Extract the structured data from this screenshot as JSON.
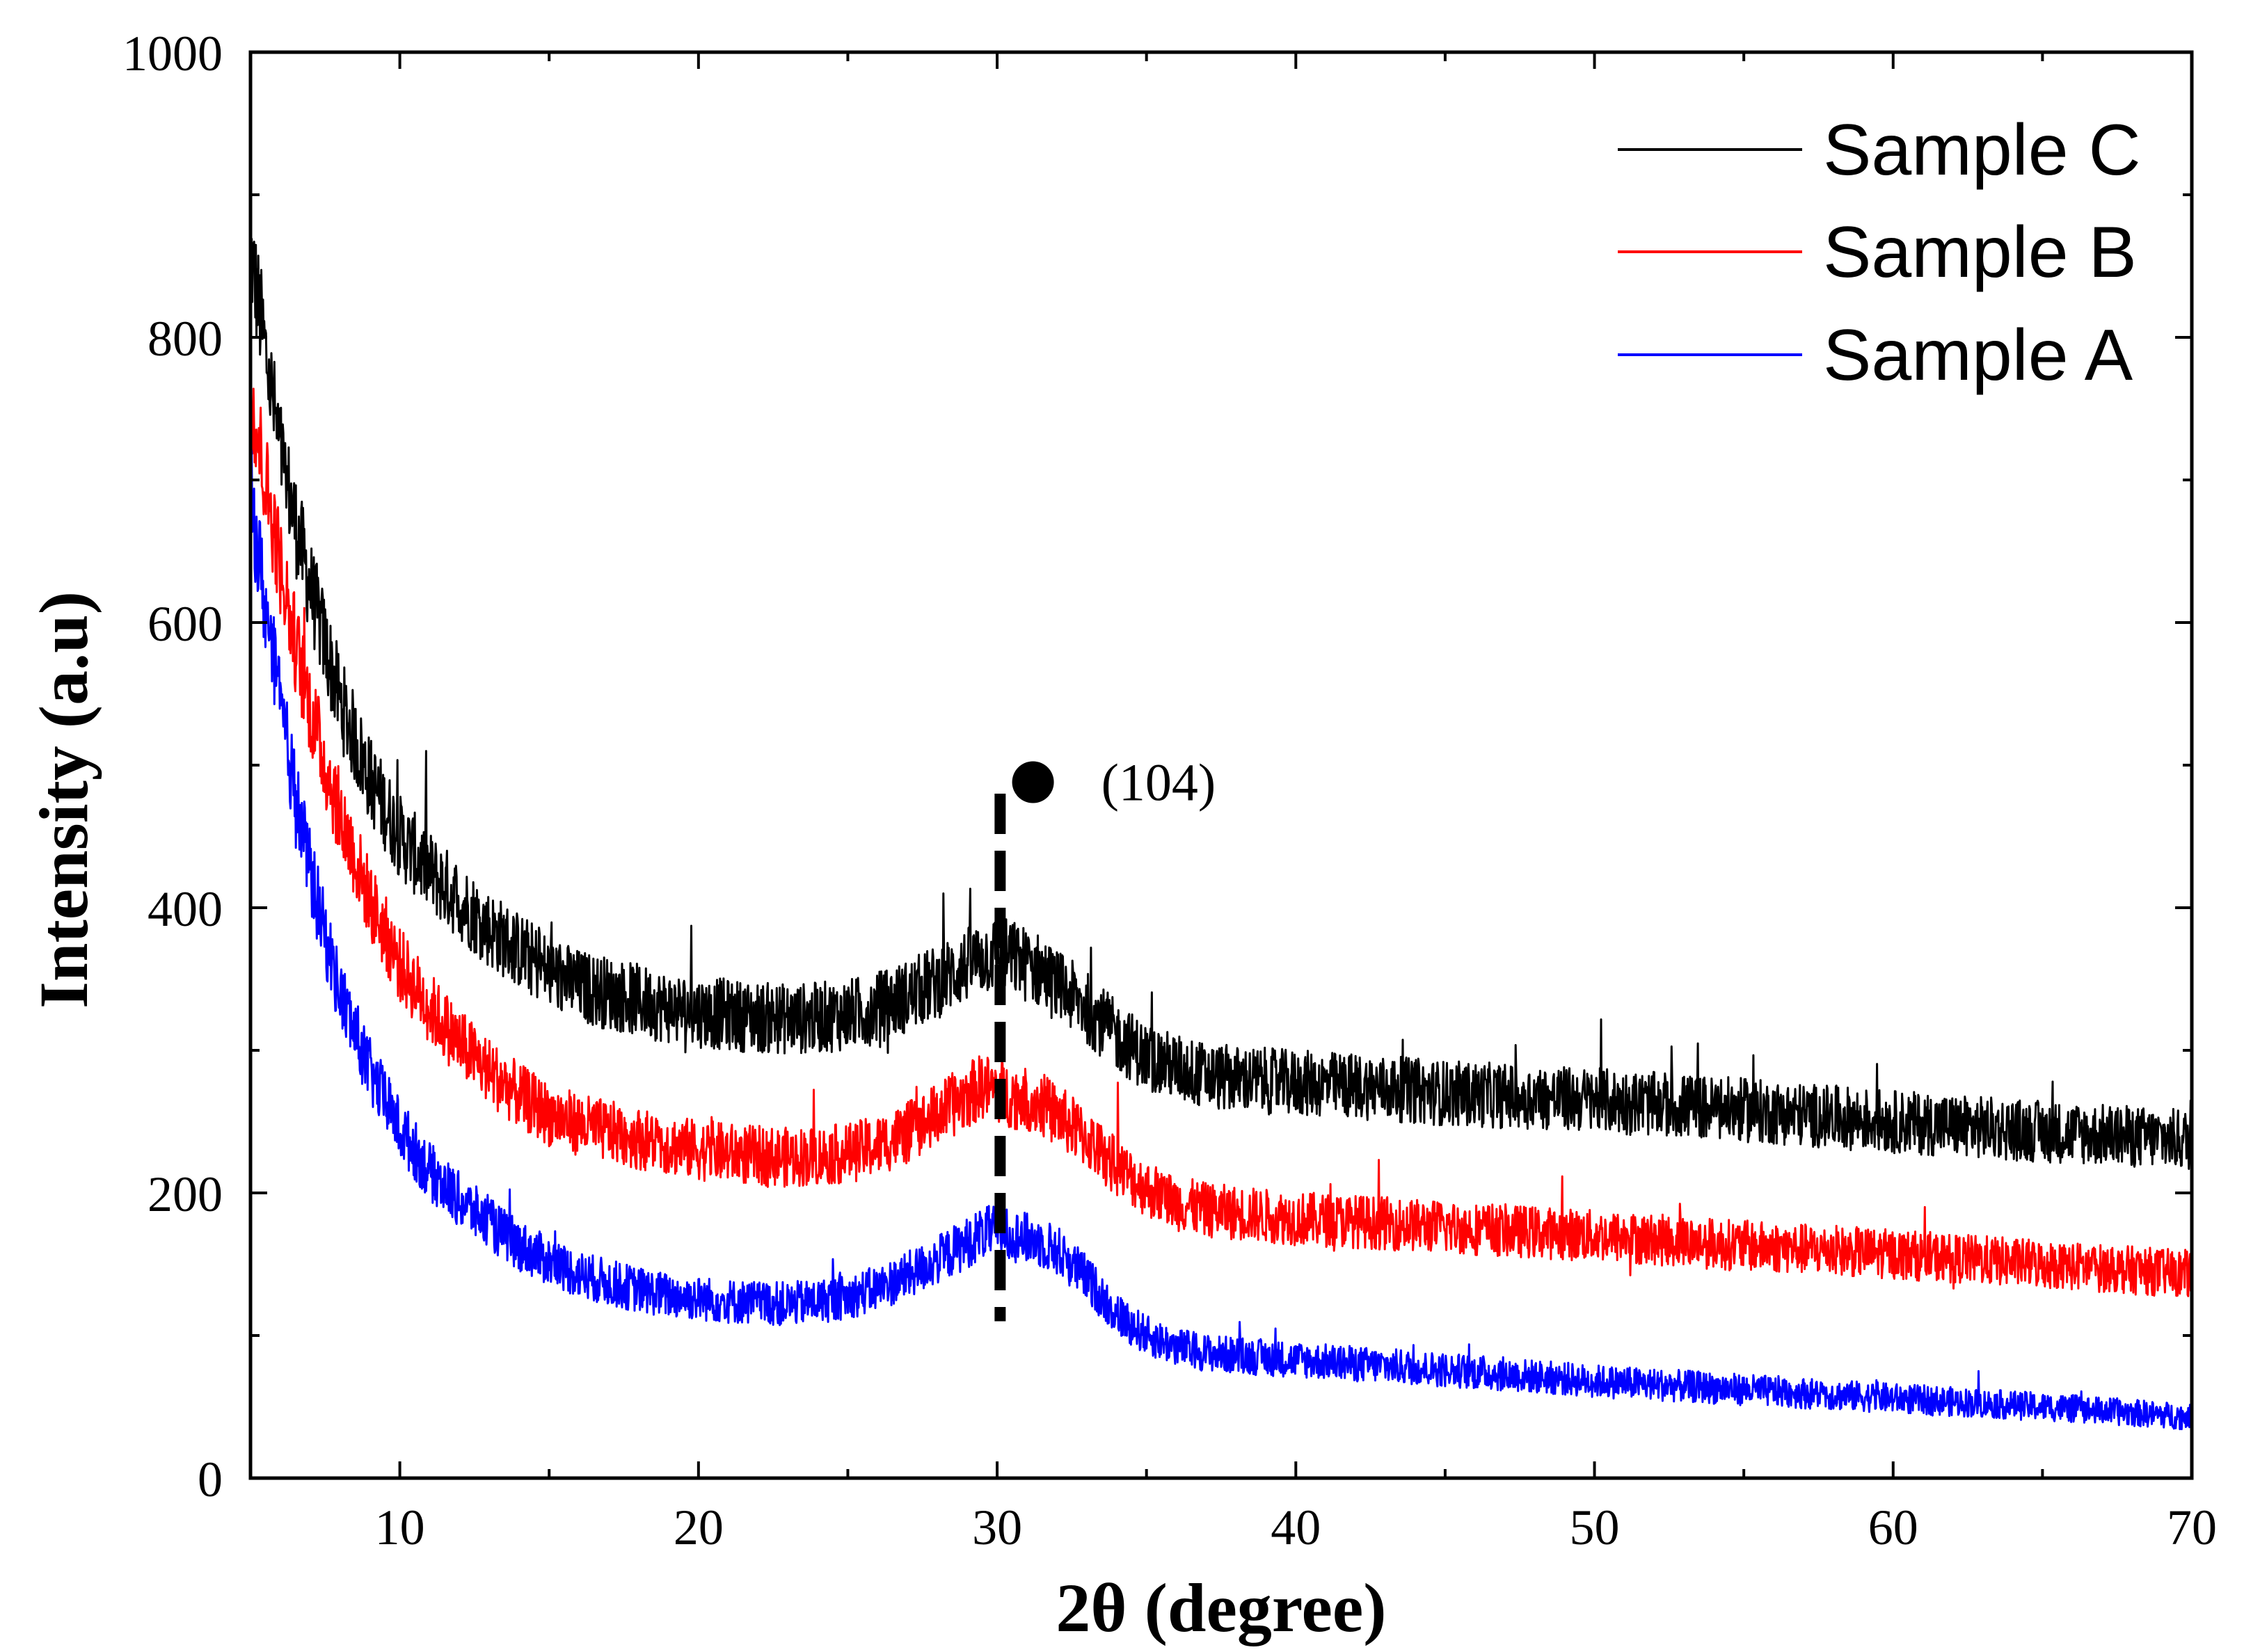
{
  "chart_data": {
    "type": "line",
    "title": "",
    "xlabel": "2θ (degree)",
    "ylabel": "Intensity (a.u)",
    "xlim": [
      5,
      70
    ],
    "ylim": [
      0,
      1000
    ],
    "xticks": [
      10,
      20,
      30,
      40,
      50,
      60,
      70
    ],
    "yticks": [
      0,
      200,
      400,
      600,
      800,
      1000
    ],
    "grid": false,
    "legend_position": "top-right",
    "series": [
      {
        "name": "Sample C",
        "color": "#000000",
        "x": [
          5,
          5.5,
          6,
          6.5,
          7,
          7.5,
          8,
          9,
          10,
          11,
          12,
          13,
          14,
          15,
          16,
          17,
          18,
          19,
          20,
          21,
          22,
          23,
          24,
          25,
          26,
          27,
          28,
          29,
          29.5,
          30,
          30.5,
          31,
          31.5,
          32,
          33,
          34,
          35,
          36,
          37,
          38,
          40,
          42,
          45,
          50,
          55,
          60,
          65,
          70
        ],
        "y": [
          860,
          790,
          720,
          670,
          625,
          585,
          545,
          490,
          450,
          425,
          405,
          385,
          370,
          355,
          345,
          340,
          335,
          330,
          327,
          325,
          323,
          322,
          323,
          325,
          330,
          338,
          348,
          360,
          365,
          368,
          365,
          360,
          355,
          345,
          330,
          310,
          295,
          288,
          282,
          280,
          277,
          275,
          270,
          265,
          258,
          250,
          243,
          237
        ]
      },
      {
        "name": "Sample B",
        "color": "#ff0000",
        "x": [
          5,
          5.5,
          6,
          6.5,
          7,
          7.5,
          8,
          9,
          10,
          11,
          12,
          13,
          14,
          15,
          16,
          17,
          18,
          19,
          20,
          21,
          22,
          23,
          24,
          25,
          26,
          27,
          28,
          29,
          29.5,
          30,
          30.5,
          31,
          31.5,
          32,
          33,
          34,
          35,
          36,
          37,
          38,
          40,
          42,
          45,
          50,
          55,
          60,
          65,
          70
        ],
        "y": [
          760,
          700,
          640,
          585,
          540,
          500,
          465,
          405,
          360,
          330,
          305,
          285,
          268,
          255,
          248,
          243,
          238,
          234,
          230,
          228,
          226,
          225,
          226,
          228,
          233,
          242,
          255,
          268,
          275,
          272,
          268,
          266,
          262,
          255,
          238,
          218,
          203,
          193,
          188,
          186,
          182,
          180,
          176,
          170,
          163,
          157,
          150,
          143
        ]
      },
      {
        "name": "Sample A",
        "color": "#0000ff",
        "x": [
          5,
          5.5,
          6,
          6.5,
          7,
          7.5,
          8,
          9,
          10,
          11,
          12,
          13,
          14,
          15,
          16,
          17,
          18,
          19,
          20,
          21,
          22,
          23,
          24,
          25,
          26,
          27,
          28,
          29,
          29.5,
          30,
          30.5,
          31,
          31.5,
          32,
          33,
          34,
          35,
          36,
          37,
          38,
          40,
          42,
          45,
          50,
          55,
          60,
          65,
          70
        ],
        "y": [
          690,
          610,
          540,
          480,
          425,
          380,
          340,
          285,
          245,
          215,
          195,
          178,
          163,
          152,
          143,
          137,
          132,
          128,
          126,
          124,
          123,
          122,
          124,
          127,
          133,
          142,
          153,
          165,
          172,
          173,
          170,
          168,
          165,
          160,
          140,
          115,
          100,
          92,
          88,
          86,
          83,
          80,
          76,
          68,
          62,
          56,
          50,
          43
        ]
      }
    ],
    "annotations": [
      {
        "text": "(104)",
        "x": 31.2,
        "y": 490,
        "marker": "filled-circle"
      }
    ],
    "reference_lines": [
      {
        "type": "vertical-dashed",
        "x": 30.1,
        "y_range": [
          110,
          480
        ]
      }
    ]
  }
}
